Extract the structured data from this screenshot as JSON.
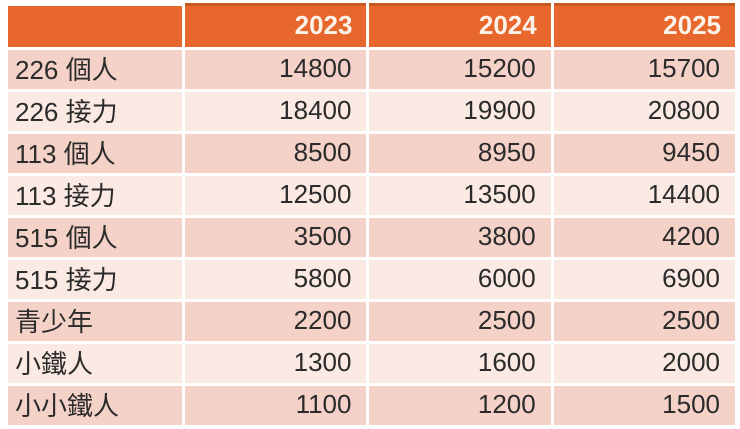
{
  "chart_data": {
    "type": "table",
    "title": "",
    "column_headers": [
      "2023",
      "2024",
      "2025"
    ],
    "rows": [
      {
        "label": "226 個人",
        "values": [
          "14800",
          "15200",
          "15700"
        ]
      },
      {
        "label": "226 接力",
        "values": [
          "18400",
          "19900",
          "20800"
        ]
      },
      {
        "label": "113 個人",
        "values": [
          "8500",
          "8950",
          "9450"
        ]
      },
      {
        "label": "113 接力",
        "values": [
          "12500",
          "13500",
          "14400"
        ]
      },
      {
        "label": "515 個人",
        "values": [
          "3500",
          "3800",
          "4200"
        ]
      },
      {
        "label": "515 接力",
        "values": [
          "5800",
          "6000",
          "6900"
        ]
      },
      {
        "label": "青少年",
        "values": [
          "2200",
          "2500",
          "2500"
        ]
      },
      {
        "label": "小鐵人",
        "values": [
          "1300",
          "1600",
          "2000"
        ]
      },
      {
        "label": "小小鐵人",
        "values": [
          "1100",
          "1200",
          "1500"
        ]
      }
    ]
  },
  "colors": {
    "header_background": "#E7672C",
    "header_top_border": "#C95A23",
    "header_text": "#FBF2EA",
    "row_band_dark": "#F5D2C8",
    "row_band_light": "#FBE9E3",
    "body_text": "#2B2B2B",
    "cell_gap": "#FFFFFF"
  }
}
